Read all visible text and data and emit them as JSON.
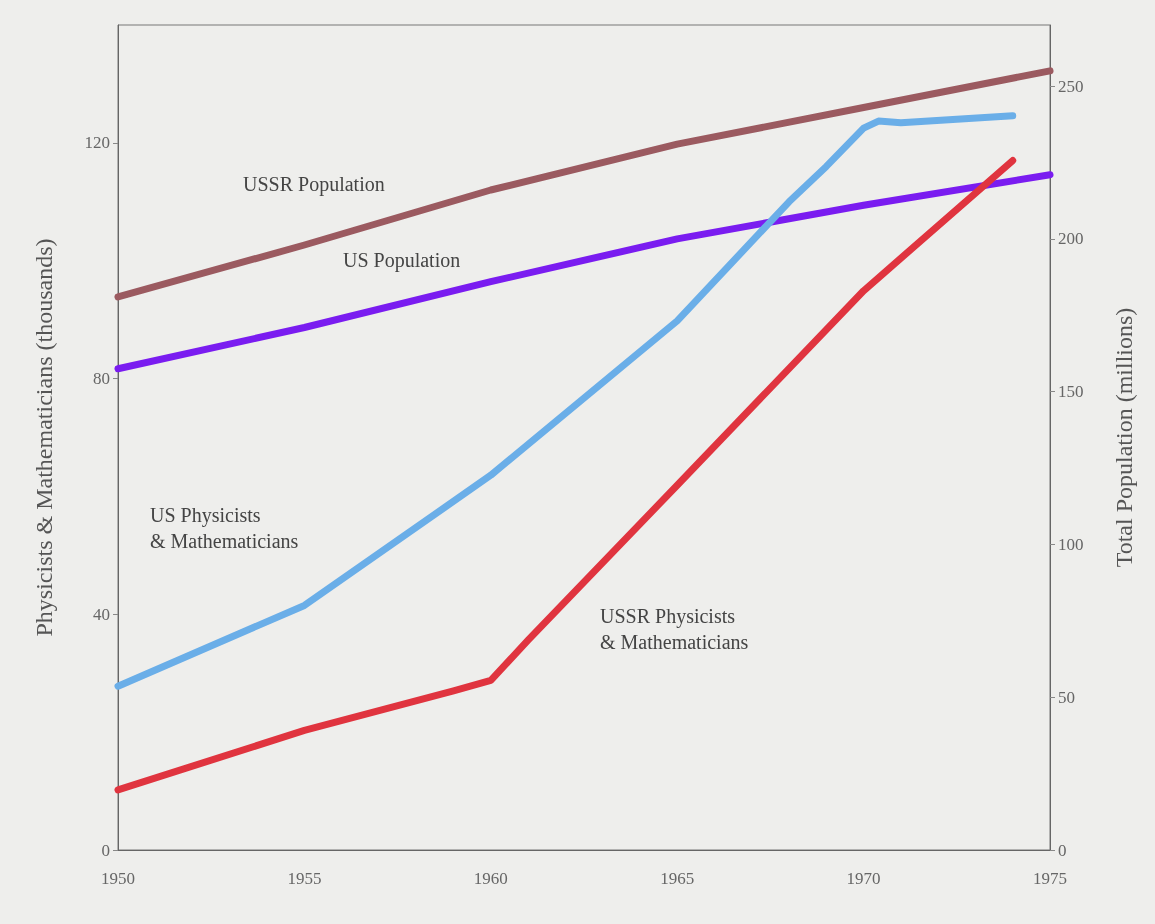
{
  "chart_data": {
    "type": "line",
    "ylabel": "Physicists & Mathematicians (thousands)",
    "y2label": "Total Population (millions)",
    "xlim": [
      1950,
      1975
    ],
    "xticks": [
      1950,
      1955,
      1960,
      1965,
      1970,
      1975
    ],
    "ylim": [
      0,
      140
    ],
    "yticks": [
      0,
      40,
      80,
      120
    ],
    "y2lim": [
      0,
      270
    ],
    "y2ticks": [
      0,
      50,
      100,
      150,
      200,
      250
    ],
    "grid": false,
    "legend": false,
    "marker": "none",
    "line_style": "solid",
    "series": [
      {
        "name": "USSR Population",
        "color": "#9b5a60",
        "axis": "y2",
        "x": [
          1950,
          1955,
          1960,
          1965,
          1970,
          1975
        ],
        "values": [
          181,
          198,
          216,
          231,
          243,
          255
        ]
      },
      {
        "name": "US Population",
        "color": "#7a1cf0",
        "axis": "y2",
        "x": [
          1950,
          1955,
          1960,
          1965,
          1970,
          1975
        ],
        "values": [
          157.5,
          171,
          186,
          200,
          211,
          221
        ]
      },
      {
        "name": "US Physicists\n& Mathematicians",
        "color": "#6aaee8",
        "x": [
          1950,
          1955,
          1960,
          1965,
          1968,
          1969,
          1970,
          1970.4,
          1971,
          1974
        ],
        "values": [
          27.8,
          41.5,
          63.6,
          89.8,
          110,
          116,
          122.5,
          123.7,
          123.4,
          124.6
        ]
      },
      {
        "name": "USSR Physicists\n& Mathematicians",
        "color": "#e0343f",
        "x": [
          1950,
          1955,
          1959,
          1960,
          1961,
          1965,
          1970,
          1974
        ],
        "values": [
          10.2,
          20.3,
          27,
          28.8,
          35.6,
          61.9,
          94.9,
          117
        ]
      }
    ]
  }
}
